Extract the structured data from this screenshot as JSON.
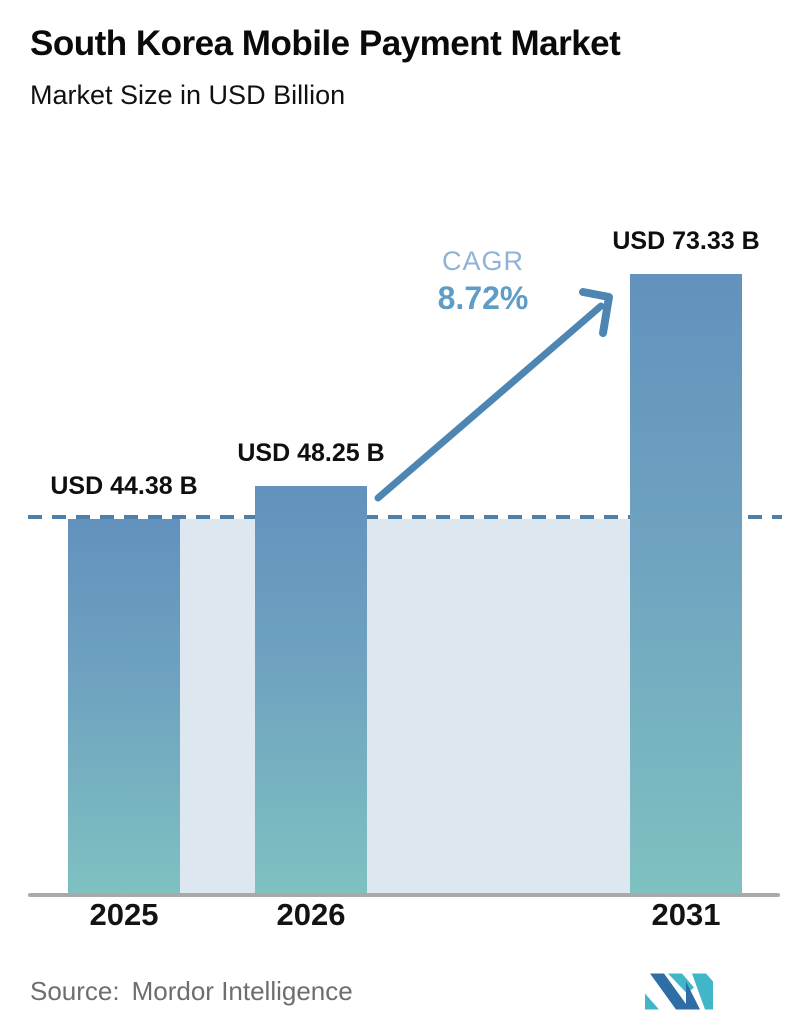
{
  "header": {
    "title": "South Korea Mobile Payment Market",
    "subtitle": "Market Size in USD Billion"
  },
  "chart_data": {
    "type": "bar",
    "title": "South Korea Mobile Payment Market",
    "subtitle": "Market Size in USD Billion",
    "unit": "USD Billion",
    "categories": [
      "2025",
      "2026",
      "2031"
    ],
    "values": [
      44.38,
      48.25,
      73.33
    ],
    "bar_labels": [
      "USD 44.38 B",
      "USD 48.25 B",
      "USD 73.33 B"
    ],
    "cagr": {
      "label": "CAGR",
      "value": "8.72%"
    },
    "reference_line": {
      "value": 44.38,
      "style": "dashed"
    },
    "ylim": [
      0,
      80
    ],
    "grid": false,
    "legend": false,
    "colors": {
      "bar_top": "#6292bd",
      "bar_bottom": "#7fc1c1",
      "band": "#dde7f0",
      "dashed_line": "#4d7fa9",
      "arrow": "#4e86b3",
      "cagr_label": "#8fb3d6",
      "cagr_value": "#5f9dc6",
      "axis_line": "#a9a9a9"
    }
  },
  "footer": {
    "source_label": "Source:",
    "source_value": "Mordor Intelligence",
    "logo_name": "mordor-intelligence-logo"
  }
}
